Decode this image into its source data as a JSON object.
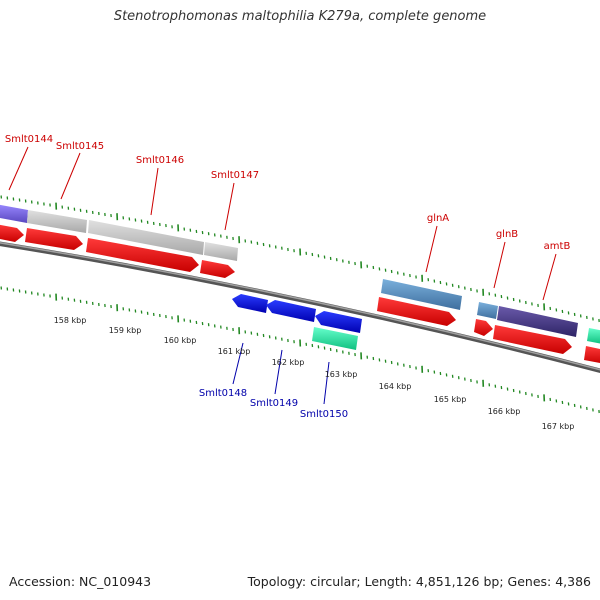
{
  "title": "Stenotrophomonas maltophilia K279a, complete genome",
  "accession_text": "Accession: NC_010943",
  "summary_text": "Topology: circular; Length: 4,851,126 bp; Genes: 4,386",
  "colors": {
    "forward_label": "#cc0000",
    "reverse_label": "#0000aa",
    "forward_cds": "#ff0000",
    "reverse_cds": "#0000ff",
    "tick": "#228822",
    "backbone": "#777777"
  },
  "kbp_labels": [
    "158 kbp",
    "159 kbp",
    "160 kbp",
    "161 kbp",
    "162 kbp",
    "163 kbp",
    "164 kbp",
    "165 kbp",
    "166 kbp",
    "167 kbp"
  ],
  "features": {
    "top_labels": [
      "Smlt0144",
      "Smlt0145",
      "Smlt0146",
      "Smlt0147",
      "glnA",
      "glnB",
      "amtB"
    ],
    "bottom_labels": [
      "Smlt0148",
      "Smlt0149",
      "Smlt0150"
    ]
  }
}
